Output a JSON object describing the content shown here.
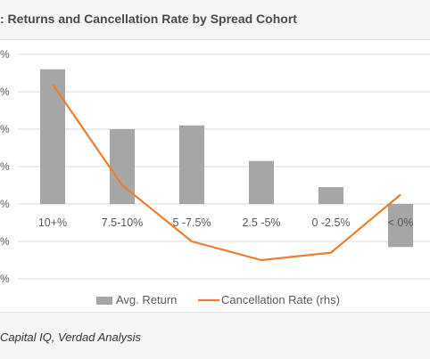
{
  "title": ": Returns and Cancellation Rate by Spread Cohort",
  "source": "Capital IQ, Verdad Analysis",
  "chart_data": {
    "type": "bar",
    "title": ": Returns and Cancellation Rate by Spread Cohort",
    "categories": [
      "10+%",
      "7.5-10%",
      "5 -7.5%",
      "2.5 -5%",
      "0 -2.5%",
      "< 0%"
    ],
    "y_tick_labels": [
      "%",
      "%",
      "%",
      "%",
      "%",
      "%",
      "%"
    ],
    "series": [
      {
        "name": "Avg. Return",
        "kind": "bar",
        "color": "#a6a6a6",
        "values": [
          3.6,
          2.0,
          2.1,
          1.15,
          0.45,
          -1.15
        ]
      },
      {
        "name": "Cancellation Rate (rhs)",
        "kind": "line",
        "color": "#ed7d31",
        "values": [
          3.2,
          0.5,
          -1.0,
          -1.5,
          -1.3,
          0.25
        ]
      }
    ],
    "ylim": [
      -2,
      4
    ],
    "grid": true,
    "legend_position": "bottom"
  },
  "legend": {
    "bar_label": "Avg. Return",
    "line_label": "Cancellation Rate (rhs)"
  }
}
